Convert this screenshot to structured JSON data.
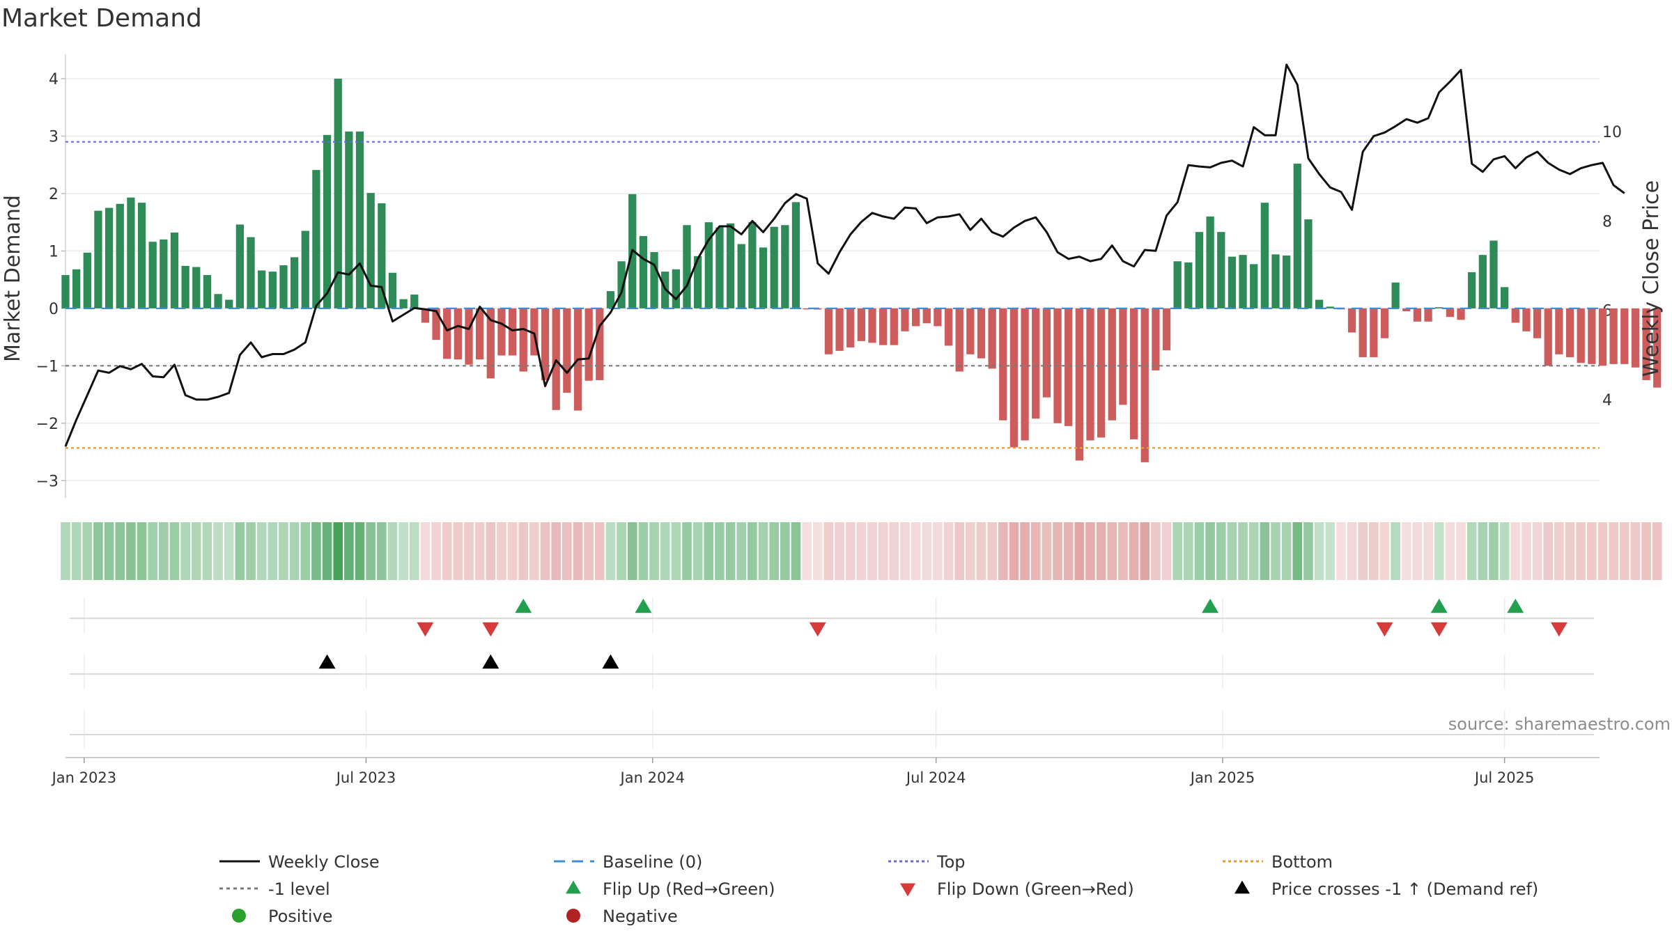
{
  "title": "Market Demand",
  "chart_data": {
    "type": "bar+line",
    "title": "Market Demand",
    "ylabel": "Market Demand",
    "y2label": "Weekly Close Price",
    "ylim": [
      -3.3,
      4.4
    ],
    "y2lim": [
      1.8,
      11.7
    ],
    "yticks": [
      -3,
      -2,
      -1,
      0,
      1,
      2,
      3,
      4
    ],
    "ytick_labels": [
      "−3",
      "−2",
      "−1",
      "0",
      "1",
      "2",
      "3",
      "4"
    ],
    "y2ticks": [
      4,
      6,
      8,
      10
    ],
    "y2tick_labels": [
      "4",
      "6",
      "8",
      "10"
    ],
    "x_start": "2022-12-20",
    "x_end": "2025-08-31",
    "xticks": [
      {
        "date": "2023-01-01",
        "label": "Jan 2023"
      },
      {
        "date": "2023-07-01",
        "label": "Jul 2023"
      },
      {
        "date": "2024-01-01",
        "label": "Jan 2024"
      },
      {
        "date": "2024-07-01",
        "label": "Jul 2024"
      },
      {
        "date": "2025-01-01",
        "label": "Jan 2025"
      },
      {
        "date": "2025-07-01",
        "label": "Jul 2025"
      }
    ],
    "first_week": "2022-12-20",
    "week_days": 7,
    "demand": [
      0.58,
      0.68,
      0.97,
      1.7,
      1.75,
      1.82,
      1.93,
      1.84,
      1.16,
      1.2,
      1.32,
      0.74,
      0.72,
      0.58,
      0.25,
      0.15,
      1.46,
      1.24,
      0.66,
      0.64,
      0.75,
      0.89,
      1.35,
      2.41,
      3.02,
      4.0,
      3.08,
      3.08,
      2.01,
      1.83,
      0.62,
      0.16,
      0.24,
      -0.25,
      -0.55,
      -0.88,
      -0.89,
      -0.98,
      -0.89,
      -1.22,
      -0.82,
      -0.82,
      -1.1,
      -0.82,
      -1.25,
      -1.77,
      -1.47,
      -1.78,
      -1.26,
      -1.25,
      0.3,
      0.82,
      1.99,
      1.26,
      0.98,
      0.64,
      0.68,
      1.45,
      0.91,
      1.5,
      1.41,
      1.48,
      1.12,
      1.5,
      1.06,
      1.42,
      1.45,
      1.85,
      -0.01,
      -0.02,
      -0.8,
      -0.74,
      -0.68,
      -0.57,
      -0.6,
      -0.64,
      -0.64,
      -0.4,
      -0.31,
      -0.26,
      -0.31,
      -0.65,
      -1.1,
      -0.8,
      -0.87,
      -1.05,
      -1.95,
      -2.42,
      -2.3,
      -1.92,
      -1.55,
      -2.0,
      -2.05,
      -2.65,
      -2.3,
      -2.25,
      -1.95,
      -1.68,
      -2.28,
      -2.68,
      -1.08,
      -0.73,
      0.82,
      0.8,
      1.33,
      1.6,
      1.33,
      0.9,
      0.93,
      0.77,
      1.84,
      0.94,
      0.92,
      2.52,
      1.55,
      0.15,
      0.03,
      -0.01,
      -0.42,
      -0.85,
      -0.85,
      -0.52,
      0.45,
      -0.05,
      -0.23,
      -0.23,
      0.02,
      -0.15,
      -0.2,
      0.63,
      0.93,
      1.18,
      0.37,
      -0.25,
      -0.4,
      -0.52,
      -1.0,
      -0.8,
      -0.85,
      -0.95,
      -0.97,
      -1.0,
      -0.97,
      -0.97,
      -1.03,
      -1.25,
      -1.38
    ],
    "close": [
      2.95,
      3.55,
      4.1,
      4.65,
      4.6,
      4.75,
      4.68,
      4.8,
      4.52,
      4.5,
      4.78,
      4.1,
      4.0,
      4.0,
      4.06,
      4.15,
      5.0,
      5.28,
      4.95,
      5.02,
      5.02,
      5.12,
      5.28,
      6.1,
      6.38,
      6.85,
      6.8,
      7.05,
      6.55,
      6.52,
      5.75,
      5.9,
      6.05,
      6.02,
      5.98,
      5.55,
      5.65,
      5.58,
      6.08,
      5.78,
      5.7,
      5.55,
      5.58,
      5.48,
      4.3,
      4.88,
      4.6,
      4.9,
      4.92,
      5.65,
      5.95,
      6.4,
      7.35,
      7.15,
      7.02,
      6.48,
      6.25,
      6.55,
      7.15,
      7.58,
      7.88,
      7.88,
      7.7,
      8.0,
      7.75,
      8.05,
      8.4,
      8.6,
      8.5,
      7.05,
      6.82,
      7.3,
      7.7,
      7.98,
      8.18,
      8.1,
      8.05,
      8.3,
      8.28,
      7.95,
      8.08,
      8.1,
      8.15,
      7.8,
      8.05,
      7.75,
      7.65,
      7.85,
      8.0,
      8.08,
      7.75,
      7.3,
      7.15,
      7.2,
      7.1,
      7.15,
      7.45,
      7.1,
      6.98,
      7.35,
      7.33,
      8.12,
      8.42,
      9.25,
      9.22,
      9.2,
      9.3,
      9.35,
      9.22,
      10.1,
      9.92,
      9.92,
      11.5,
      11.05,
      9.4,
      9.05,
      8.75,
      8.65,
      8.25,
      9.55,
      9.9,
      9.98,
      10.12,
      10.28,
      10.2,
      10.3,
      10.88,
      11.12,
      11.38,
      9.28,
      9.1,
      9.38,
      9.45,
      9.18,
      9.42,
      9.55,
      9.3,
      9.15,
      9.05,
      9.18,
      9.25,
      9.3,
      8.8,
      8.62
    ],
    "flip_up_weeks": [
      42,
      53,
      105,
      126,
      133
    ],
    "flip_down_weeks": [
      33,
      39,
      69,
      121,
      126,
      137
    ],
    "price_cross_weeks": [
      24,
      39,
      50
    ],
    "reference_lines": [
      {
        "name": "Top",
        "value": 2.9,
        "color": "#6b6bd6"
      },
      {
        "name": "-1 level",
        "value": -1,
        "color": "#7a7a7a"
      },
      {
        "name": "Bottom",
        "value": -2.43,
        "color": "#e0a030"
      },
      {
        "name": "Baseline (0)",
        "value": 0,
        "color": "#3b8ed4"
      }
    ],
    "colors": {
      "positive": "#2e8b57",
      "negative": "#cd5c5c",
      "line": "#111111",
      "flip_up": "#23a04f",
      "flip_down": "#d63a3a",
      "cross": "#000000",
      "dot_positive": "#2ca02c",
      "dot_negative": "#b22222"
    },
    "source": "source: sharemaestro.com",
    "legend": [
      {
        "label": "Weekly Close",
        "marker": "solid-line"
      },
      {
        "label": "Baseline (0)",
        "marker": "dashed-line"
      },
      {
        "label": "Top",
        "marker": "dotted-line"
      },
      {
        "label": "Bottom",
        "marker": "dotted-line"
      },
      {
        "label": "-1 level",
        "marker": "dotted-line"
      },
      {
        "label": "Flip Up (Red→Green)",
        "marker": "up-triangle"
      },
      {
        "label": "Flip Down (Green→Red)",
        "marker": "down-triangle"
      },
      {
        "label": "Price crosses -1 ↑ (Demand ref)",
        "marker": "up-triangle"
      },
      {
        "label": "Positive",
        "marker": "dot"
      },
      {
        "label": "Negative",
        "marker": "dot"
      }
    ]
  }
}
